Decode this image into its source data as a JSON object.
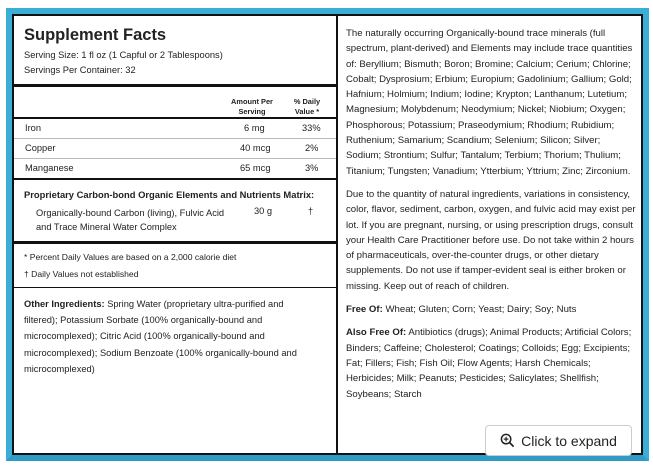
{
  "facts": {
    "title": "Supplement Facts",
    "serving_size": "Serving Size: 1 fl oz (1 Capful or 2 Tablespoons)",
    "servings_per_container": "Servings Per Container: 32",
    "col_amount": "Amount Per Serving",
    "col_dv": "% Daily Value *",
    "rows": [
      {
        "name": "Iron",
        "amount": "6 mg",
        "dv": "33%"
      },
      {
        "name": "Copper",
        "amount": "40 mcg",
        "dv": "2%"
      },
      {
        "name": "Manganese",
        "amount": "65 mcg",
        "dv": "3%"
      }
    ],
    "matrix_title": "Proprietary Carbon-bond Organic Elements and Nutrients Matrix:",
    "matrix_item": "Organically-bound Carbon (living), Fulvic Acid and Trace Mineral Water Complex",
    "matrix_amount": "30 g",
    "matrix_dv": "†",
    "footnote1": "* Percent Daily Values are based on a 2,000 calorie diet",
    "footnote2": "† Daily Values not established",
    "other_label": "Other Ingredients:",
    "other_text": "Spring Water (proprietary ultra-purified and filtered); Potassium Sorbate (100% organically-bound and microcomplexed); Citric Acid (100% organically-bound and microcomplexed); Sodium Benzoate (100% organically-bound and microcomplexed)"
  },
  "right": {
    "minerals": "The naturally occurring Organically-bound trace minerals (full spectrum, plant-derived) and Elements may include trace quantities of: Beryllium; Bismuth; Boron; Bromine; Calcium; Cerium; Chlorine; Cobalt; Dysprosium; Erbium; Europium; Gadolinium; Gallium; Gold; Hafnium; Holmium; Indium; Iodine; Krypton; Lanthanum; Lutetium; Magnesium; Molybdenum; Neodymium; Nickel; Niobium; Oxygen; Phosphorous; Potassium; Praseodymium; Rhodium; Rubidium; Ruthenium; Samarium; Scandium; Selenium; Silicon; Silver; Sodium; Strontium; Sulfur; Tantalum; Terbium; Thorium; Thulium; Titanium; Tungsten; Vanadium; Ytterbium; Yttrium; Zinc; Zirconium.",
    "warning": "Due to the quantity of natural ingredients, variations in consistency, color, flavor, sediment, carbon, oxygen, and fulvic acid may exist per lot. If you are pregnant, nursing, or using prescription drugs, consult your Health Care Practitioner before use. Do not take within 2 hours of pharmaceuticals, over-the-counter drugs, or other dietary supplements. Do not use if tamper-evident seal is either broken or missing. Keep out of reach of children.",
    "free_of_label": "Free Of:",
    "free_of_text": "Wheat; Gluten; Corn; Yeast; Dairy; Soy; Nuts",
    "also_free_label": "Also Free Of:",
    "also_free_text": "Antibiotics (drugs); Animal Products; Artificial Colors; Binders;  Caffeine; Cholesterol; Coatings; Colloids; Egg; Excipients; Fat; Fillers; Fish; Fish Oil; Flow Agents; Harsh Chemicals; Herbicides; Milk; Peanuts; Pesticides; Salicylates; Shellfish; Soybeans; Starch"
  },
  "expand_button": {
    "label": "Click to expand",
    "icon": "zoom-in-icon"
  },
  "colors": {
    "frame": "#3aaed6"
  }
}
